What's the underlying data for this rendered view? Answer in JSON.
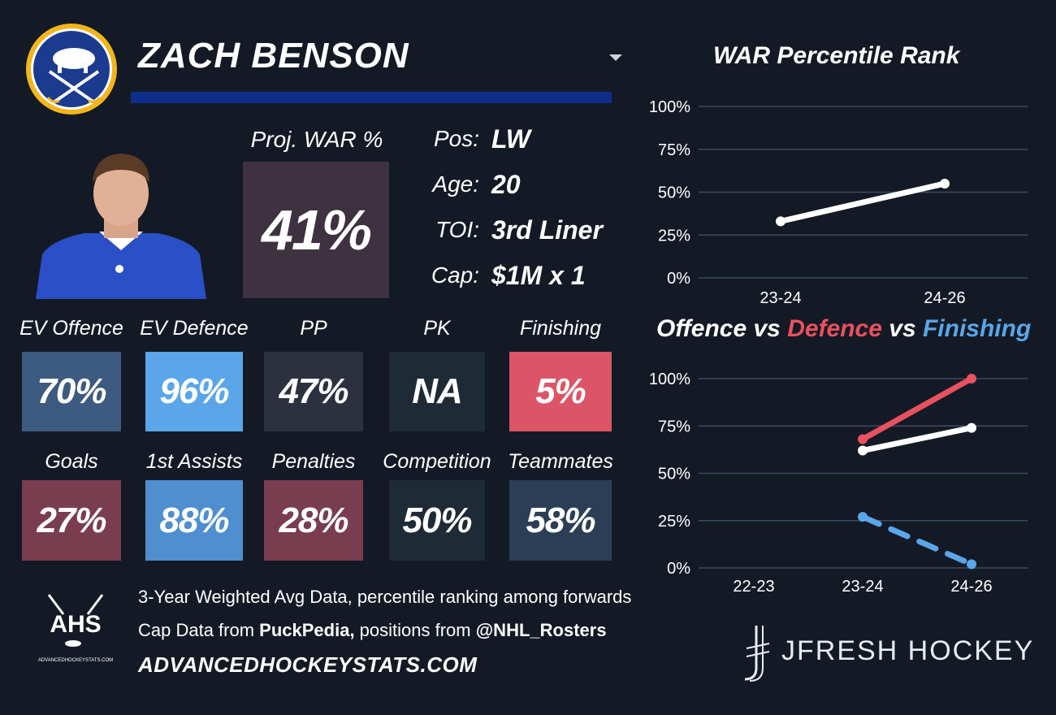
{
  "player": {
    "name": "ZACH BENSON"
  },
  "projected": {
    "label": "Proj. WAR %",
    "value": "41%"
  },
  "info": [
    {
      "label": "Pos:",
      "value": "LW"
    },
    {
      "label": "Age:",
      "value": "20"
    },
    {
      "label": "TOI:",
      "value": "3rd Liner"
    },
    {
      "label": "Cap:",
      "value": "$1M x 1"
    }
  ],
  "stats_row1": [
    {
      "label": "EV Offence",
      "value": "70%",
      "color": "#3d5a80"
    },
    {
      "label": "EV Defence",
      "value": "96%",
      "color": "#5aa6e8"
    },
    {
      "label": "PP",
      "value": "47%",
      "color": "#2c3140"
    },
    {
      "label": "PK",
      "value": "NA",
      "color": "#1f2a37"
    },
    {
      "label": "Finishing",
      "value": "5%",
      "color": "#db5567"
    }
  ],
  "stats_row2": [
    {
      "label": "Goals",
      "value": "27%",
      "color": "#7a3d50"
    },
    {
      "label": "1st Assists",
      "value": "88%",
      "color": "#4f8fcf"
    },
    {
      "label": "Penalties",
      "value": "28%",
      "color": "#7a3d50"
    },
    {
      "label": "Competition",
      "value": "50%",
      "color": "#1f2a37"
    },
    {
      "label": "Teammates",
      "value": "58%",
      "color": "#2c3e55"
    }
  ],
  "chart_data": [
    {
      "type": "line",
      "title": "WAR Percentile Rank",
      "categories": [
        "23-24",
        "24-26"
      ],
      "y_ticks": [
        "100%",
        "75%",
        "50%",
        "25%",
        "0%"
      ],
      "ylim": [
        0,
        100
      ],
      "series": [
        {
          "values": [
            33,
            55
          ],
          "color": "#ffffff"
        }
      ]
    },
    {
      "type": "line",
      "title_parts": [
        {
          "text": "Offence",
          "color": "#ffffff"
        },
        {
          "text": " vs ",
          "color": "#ffffff"
        },
        {
          "text": "Defence",
          "color": "#e8515f"
        },
        {
          "text": " vs ",
          "color": "#ffffff"
        },
        {
          "text": "Finishing",
          "color": "#5aa6e8"
        }
      ],
      "categories": [
        "22-23",
        "23-24",
        "24-26"
      ],
      "y_ticks": [
        "100%",
        "75%",
        "50%",
        "25%",
        "0%"
      ],
      "ylim": [
        0,
        100
      ],
      "series": [
        {
          "values": [
            null,
            68,
            100
          ],
          "color": "#e8515f",
          "dash": false
        },
        {
          "values": [
            null,
            62,
            74
          ],
          "color": "#ffffff",
          "dash": false
        },
        {
          "values": [
            null,
            27,
            2
          ],
          "color": "#5aa6e8",
          "dash": true
        }
      ]
    }
  ],
  "footer": {
    "line1": "3-Year Weighted Avg Data, percentile ranking among forwards",
    "line2_prefix": "Cap Data from ",
    "line2_bold1": "PuckPedia,",
    "line2_mid": " positions from ",
    "line2_bold2": "@NHL_Rosters",
    "url": "ADVANCEDHOCKEYSTATS.COM",
    "ahs_logo_text": "AHS",
    "ahs_small": "ADVANCEDHOCKEYSTATS.COM",
    "brand": "JFRESH HOCKEY"
  }
}
